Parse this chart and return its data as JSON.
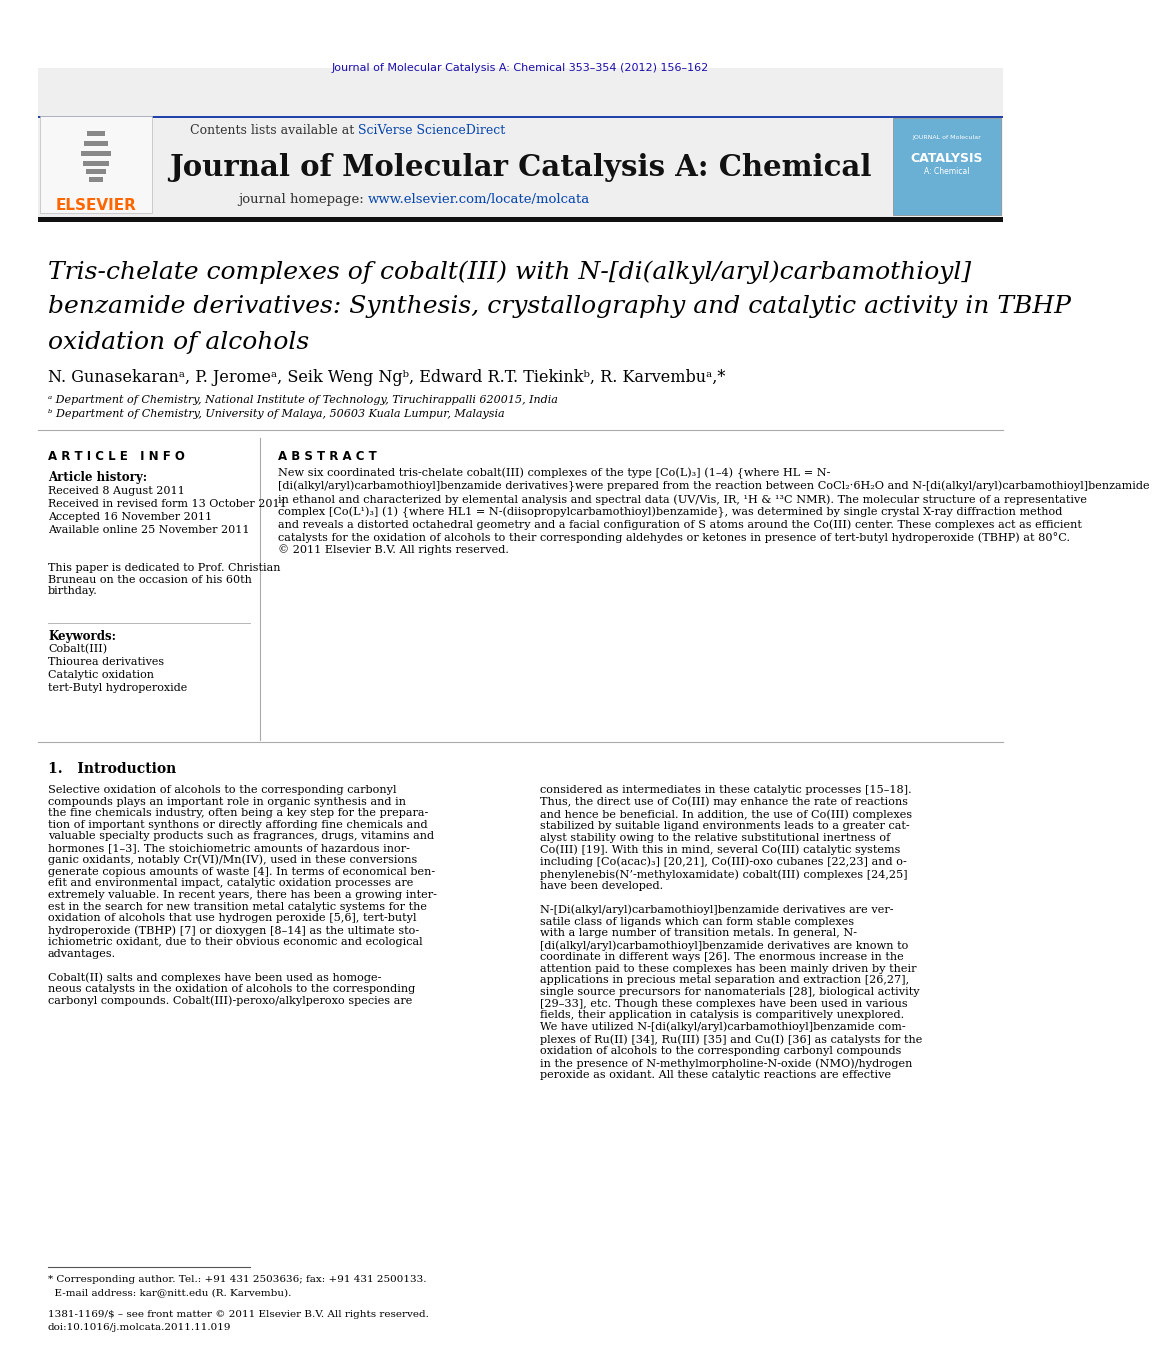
{
  "page_bg": "#ffffff",
  "top_link_text": "Journal of Molecular Catalysis A: Chemical 353–354 (2012) 156–162",
  "top_link_color": "#1a0dab",
  "header_gray": "#efefef",
  "header_contents_pre": "Contents lists available at ",
  "header_sciverse_text": "SciVerse ScienceDirect",
  "header_sciverse_color": "#0645ad",
  "journal_title": "Journal of Molecular Catalysis A: Chemical",
  "journal_homepage_pre": "journal homepage: ",
  "journal_homepage_url": "www.elsevier.com/locate/molcata",
  "journal_homepage_url_color": "#0645ad",
  "elsevier_color": "#ff6600",
  "article_title_line1": "Tris-chelate complexes of cobalt(III) with N-[di(alkyl/aryl)carbamothioyl]",
  "article_title_line2": "benzamide derivatives: Synthesis, crystallography and catalytic activity in TBHP",
  "article_title_line3": "oxidation of alcohols",
  "authors": "N. Gunasekaranᵃ, P. Jeromeᵃ, Seik Weng Ngᵇ, Edward R.T. Tiekinkᵇ, R. Karvembuᵃ,*",
  "affil_a": "ᵃ Department of Chemistry, National Institute of Technology, Tiruchirappalli 620015, India",
  "affil_b": "ᵇ Department of Chemistry, University of Malaya, 50603 Kuala Lumpur, Malaysia",
  "article_info_header": "A R T I C L E   I N F O",
  "article_history_header": "Article history:",
  "received_text": "Received 8 August 2011",
  "received_revised_text": "Received in revised form 13 October 2011",
  "accepted_text": "Accepted 16 November 2011",
  "available_text": "Available online 25 November 2011",
  "dedication_text": "This paper is dedicated to Prof. Christian\nBruneau on the occasion of his 60th\nbirthday.",
  "keywords_header": "Keywords:",
  "keywords": [
    "Cobalt(III)",
    "Thiourea derivatives",
    "Catalytic oxidation",
    "tert-Butyl hydroperoxide"
  ],
  "abstract_header": "A B S T R A C T",
  "abstract_text": "New six coordinated tris-chelate cobalt(III) complexes of the type [Co(L)₃] (1–4) {where HL = N-\n[di(alkyl/aryl)carbamothioyl]benzamide derivatives}were prepared from the reaction between CoCl₂·6H₂O and N-[di(alkyl/aryl)carbamothioyl]benzamide\nin ethanol and characterized by elemental analysis and spectral data (UV/Vis, IR, ¹H & ¹³C NMR). The molecular structure of a representative\ncomplex [Co(L¹)₃] (1) {where HL1 = N-(diisopropylcarbamothioyl)benzamide}, was determined by single crystal X-ray diffraction method\nand reveals a distorted octahedral geometry and a facial configuration of S atoms around the Co(III) center. These complexes act as efficient\ncatalysts for the oxidation of alcohols to their corresponding aldehydes or ketones in presence of tert-butyl hydroperoxide (TBHP) at 80°C.\n© 2011 Elsevier B.V. All rights reserved.",
  "intro_header": "1.   Introduction",
  "intro_col1": "Selective oxidation of alcohols to the corresponding carbonyl\ncompounds plays an important role in organic synthesis and in\nthe fine chemicals industry, often being a key step for the prepara-\ntion of important synthons or directly affording fine chemicals and\nvaluable specialty products such as fragrances, drugs, vitamins and\nhormones [1–3]. The stoichiometric amounts of hazardous inor-\nganic oxidants, notably Cr(VI)/Mn(IV), used in these conversions\ngenerate copious amounts of waste [4]. In terms of economical ben-\nefit and environmental impact, catalytic oxidation processes are\nextremely valuable. In recent years, there has been a growing inter-\nest in the search for new transition metal catalytic systems for the\noxidation of alcohols that use hydrogen peroxide [5,6], tert-butyl\nhydroperoxide (TBHP) [7] or dioxygen [8–14] as the ultimate sto-\nichiometric oxidant, due to their obvious economic and ecological\nadvantages.\n\nCobalt(II) salts and complexes have been used as homoge-\nneous catalysts in the oxidation of alcohols to the corresponding\ncarbonyl compounds. Cobalt(III)-peroxo/alkylperoxo species are",
  "intro_col2": "considered as intermediates in these catalytic processes [15–18].\nThus, the direct use of Co(III) may enhance the rate of reactions\nand hence be beneficial. In addition, the use of Co(III) complexes\nstabilized by suitable ligand environments leads to a greater cat-\nalyst stability owing to the relative substitutional inertness of\nCo(III) [19]. With this in mind, several Co(III) catalytic systems\nincluding [Co(acac)₃] [20,21], Co(III)-oxo cubanes [22,23] and o-\nphenylenebis(N’-methyloxamidate) cobalt(III) complexes [24,25]\nhave been developed.\n\nN-[Di(alkyl/aryl)carbamothioyl]benzamide derivatives are ver-\nsatile class of ligands which can form stable complexes\nwith a large number of transition metals. In general, N-\n[di(alkyl/aryl)carbamothioyl]benzamide derivatives are known to\ncoordinate in different ways [26]. The enormous increase in the\nattention paid to these complexes has been mainly driven by their\napplications in precious metal separation and extraction [26,27],\nsingle source precursors for nanomaterials [28], biological activity\n[29–33], etc. Though these complexes have been used in various\nfields, their application in catalysis is comparitively unexplored.\nWe have utilized N-[di(alkyl/aryl)carbamothioyl]benzamide com-\nplexes of Ru(II) [34], Ru(III) [35] and Cu(I) [36] as catalysts for the\noxidation of alcohols to the corresponding carbonyl compounds\nin the presence of N-methylmorpholine-N-oxide (NMO)/hydrogen\nperoxide as oxidant. All these catalytic reactions are effective",
  "footnote_line1": "* Corresponding author. Tel.: +91 431 2503636; fax: +91 431 2500133.",
  "footnote_line2": "  E-mail address: kar@nitt.edu (R. Karvembu).",
  "footnote_issn": "1381-1169/$ – see front matter © 2011 Elsevier B.V. All rights reserved.",
  "footnote_doi": "doi:10.1016/j.molcata.2011.11.019",
  "sep_color": "#aaaaaa",
  "thick_sep_color": "#111111"
}
